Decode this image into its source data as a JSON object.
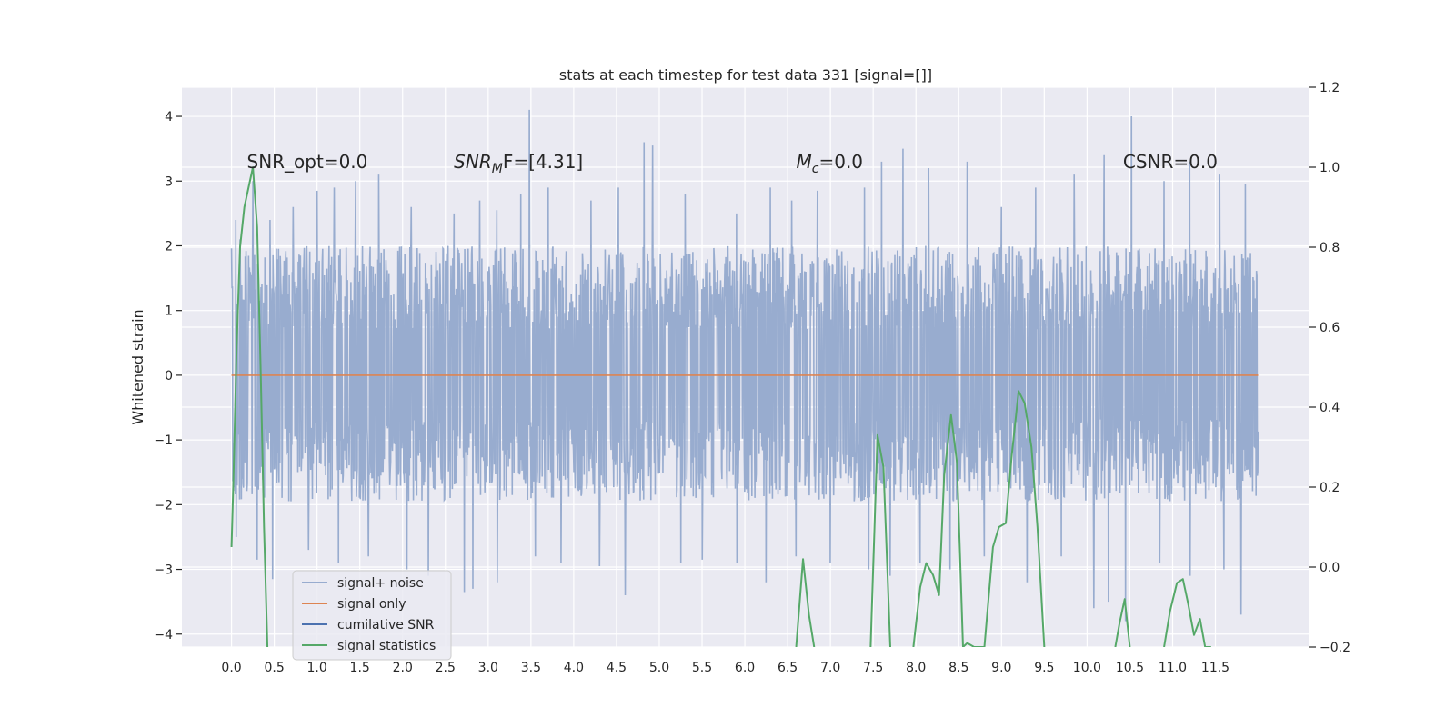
{
  "chart_data": {
    "type": "line",
    "title": "stats at each timestep for test data 331 [signal=[]]",
    "ylabel": "Whitened strain",
    "xlim": [
      -0.58,
      12.6
    ],
    "ylim": [
      -4.2,
      4.45
    ],
    "y2lim": [
      -0.2,
      1.2
    ],
    "x_ticks": [
      0.0,
      0.5,
      1.0,
      1.5,
      2.0,
      2.5,
      3.0,
      3.5,
      4.0,
      4.5,
      5.0,
      5.5,
      6.0,
      6.5,
      7.0,
      7.5,
      8.0,
      8.5,
      9.0,
      9.5,
      10.0,
      10.5,
      11.0,
      11.5
    ],
    "x_tick_labels": [
      "0.0",
      "0.5",
      "1.0",
      "1.5",
      "2.0",
      "2.5",
      "3.0",
      "3.5",
      "4.0",
      "4.5",
      "5.0",
      "5.5",
      "6.0",
      "6.5",
      "7.0",
      "7.5",
      "8.0",
      "8.5",
      "9.0",
      "9.5",
      "10.0",
      "10.5",
      "11.0",
      "11.5"
    ],
    "y_ticks": [
      4,
      3,
      2,
      1,
      0,
      -1,
      -2,
      -3,
      -4
    ],
    "y_tick_labels": [
      "4",
      "3",
      "2",
      "1",
      "0",
      "−1",
      "−2",
      "−3",
      "−4"
    ],
    "y2_ticks": [
      1.2,
      1.0,
      0.8,
      0.6,
      0.4,
      0.2,
      0.0,
      -0.2
    ],
    "y2_tick_labels": [
      "1.2",
      "1.0",
      "0.8",
      "0.6",
      "0.4",
      "0.2",
      "0.0",
      "−0.2"
    ],
    "grid": true,
    "legend_position": "lower-left",
    "noise": {
      "name": "signal+ noise",
      "x_range": [
        0.0,
        12.0
      ],
      "envelope_upper": 2.0,
      "envelope_lower": -1.95,
      "peak_x": [
        0.05,
        0.1,
        0.25,
        0.45,
        0.72,
        1.0,
        1.2,
        1.45,
        1.72,
        2.1,
        2.6,
        2.9,
        3.1,
        3.38,
        3.48,
        3.7,
        4.2,
        4.52,
        4.82,
        4.92,
        5.3,
        5.9,
        6.3,
        6.55,
        6.85,
        7.4,
        7.6,
        7.85,
        8.15,
        8.6,
        9.0,
        9.4,
        9.85,
        10.2,
        10.52,
        10.9,
        11.2,
        11.55,
        11.85
      ],
      "peak_y": [
        2.4,
        2.1,
        3.0,
        2.4,
        2.6,
        2.85,
        2.9,
        3.0,
        3.1,
        2.6,
        2.5,
        2.7,
        2.55,
        2.8,
        4.1,
        2.9,
        2.7,
        2.9,
        3.6,
        3.55,
        2.8,
        2.5,
        2.9,
        2.7,
        2.85,
        2.9,
        3.3,
        3.5,
        3.2,
        3.3,
        2.6,
        2.9,
        3.1,
        3.4,
        4.0,
        3.0,
        3.3,
        3.1,
        2.95
      ],
      "trough_x": [
        0.05,
        0.3,
        0.48,
        0.9,
        1.25,
        1.6,
        2.05,
        2.3,
        2.72,
        2.82,
        3.1,
        3.55,
        3.85,
        4.3,
        4.6,
        5.25,
        5.5,
        5.9,
        6.25,
        6.6,
        7.0,
        7.45,
        7.7,
        8.05,
        8.4,
        8.8,
        9.3,
        9.7,
        10.08,
        10.25,
        10.45,
        10.85,
        11.2,
        11.6,
        11.8
      ],
      "trough_y": [
        -2.5,
        -2.85,
        -3.15,
        -2.7,
        -2.9,
        -2.8,
        -3.0,
        -3.1,
        -3.35,
        -3.3,
        -3.2,
        -2.8,
        -2.9,
        -2.95,
        -3.4,
        -2.9,
        -2.85,
        -2.9,
        -3.2,
        -2.8,
        -2.9,
        -3.0,
        -3.1,
        -2.9,
        -3.0,
        -2.8,
        -3.2,
        -2.8,
        -3.6,
        -3.5,
        -3.8,
        -2.9,
        -3.1,
        -3.0,
        -3.7
      ]
    },
    "signal_only": {
      "name": "signal only",
      "x": [
        0.0,
        12.0
      ],
      "y": [
        0.0,
        0.0
      ]
    },
    "cumulative_snr": {
      "name": "cumilative SNR"
    },
    "signal_statistics": {
      "name": "signal statistics",
      "axis": "right",
      "segments": [
        {
          "x": [
            0.0,
            0.02,
            0.06,
            0.1,
            0.15,
            0.2,
            0.25,
            0.3,
            0.34,
            0.38,
            0.42
          ],
          "y": [
            0.05,
            0.2,
            0.55,
            0.8,
            0.9,
            0.95,
            1.0,
            0.85,
            0.5,
            0.1,
            -0.2
          ]
        },
        {
          "x": [
            6.6,
            6.68,
            6.75,
            6.81
          ],
          "y": [
            -0.2,
            0.02,
            -0.12,
            -0.2
          ]
        },
        {
          "x": [
            7.47,
            7.55,
            7.62,
            7.7
          ],
          "y": [
            -0.2,
            0.33,
            0.25,
            -0.2
          ]
        },
        {
          "x": [
            7.97,
            8.05,
            8.12,
            8.2,
            8.27,
            8.33,
            8.41,
            8.48,
            8.55,
            8.6,
            8.68,
            8.8
          ],
          "y": [
            -0.2,
            -0.05,
            0.01,
            -0.02,
            -0.07,
            0.23,
            0.38,
            0.26,
            -0.2,
            -0.19,
            -0.2,
            -0.2
          ]
        },
        {
          "x": [
            8.8,
            8.9,
            8.97,
            9.05,
            9.12,
            9.2,
            9.27,
            9.35,
            9.42,
            9.5
          ],
          "y": [
            -0.2,
            0.05,
            0.1,
            0.11,
            0.28,
            0.44,
            0.41,
            0.3,
            0.1,
            -0.2
          ]
        },
        {
          "x": [
            10.33,
            10.38,
            10.44,
            10.5
          ],
          "y": [
            -0.2,
            -0.14,
            -0.08,
            -0.2
          ]
        },
        {
          "x": [
            10.9,
            10.97,
            11.05,
            11.12,
            11.18,
            11.25,
            11.32,
            11.38,
            11.45
          ],
          "y": [
            -0.2,
            -0.11,
            -0.04,
            -0.03,
            -0.09,
            -0.17,
            -0.13,
            -0.2,
            -0.2
          ]
        }
      ]
    },
    "annotations": [
      {
        "name": "snr-opt-annotation",
        "text": "SNR_opt=0.0",
        "x": 0.18,
        "y": 3.2,
        "math": false
      },
      {
        "name": "snr-mf-annotation",
        "base": "SNR",
        "sub": "M",
        "tail": "F=[4.31]",
        "x": 2.6,
        "y": 3.2,
        "math": true
      },
      {
        "name": "chirp-mass-annotation",
        "base": "M",
        "sub": "c",
        "tail": "=0.0",
        "x": 6.6,
        "y": 3.2,
        "math": true
      },
      {
        "name": "csnr-annotation",
        "text": "CSNR=0.0",
        "x": 10.42,
        "y": 3.2,
        "math": false
      }
    ],
    "colors": {
      "background": "#eaeaf2",
      "grid": "#ffffff",
      "noise": "#98accf",
      "signal_only": "#dd8452",
      "cumulative_snr": "#4c72b0",
      "signal_statistics": "#55a868"
    }
  }
}
